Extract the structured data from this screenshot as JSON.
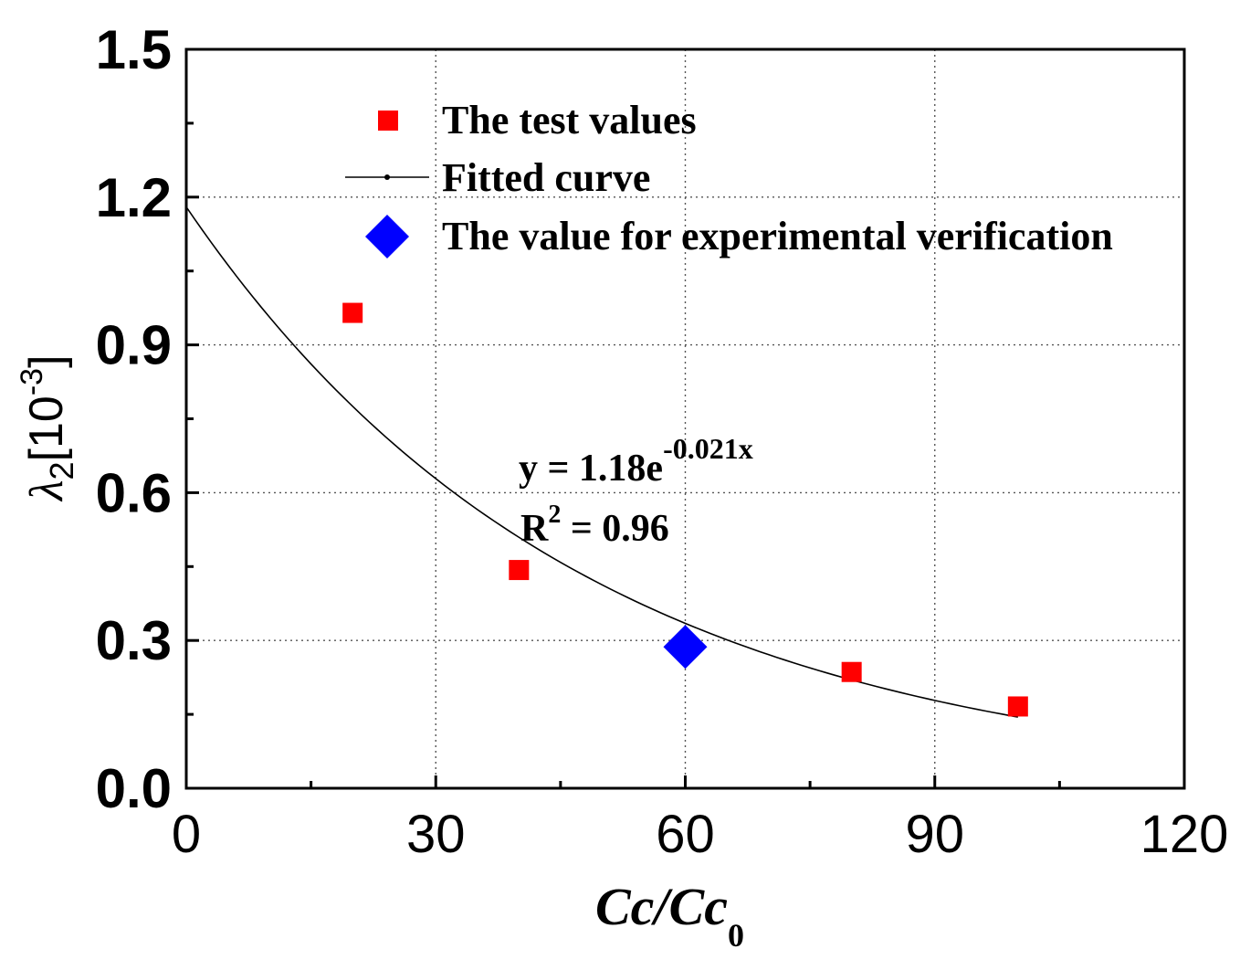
{
  "chart_data": {
    "type": "scatter",
    "xlim": [
      0,
      120
    ],
    "ylim": [
      0.0,
      1.5
    ],
    "x_ticks": [
      "0",
      "30",
      "60",
      "90",
      "120"
    ],
    "y_ticks": [
      "0.0",
      "0.3",
      "0.6",
      "0.9",
      "1.2",
      "1.5"
    ],
    "x_tick_values": [
      0,
      30,
      60,
      90,
      120
    ],
    "y_tick_values": [
      0.0,
      0.3,
      0.6,
      0.9,
      1.2,
      1.5
    ],
    "grid": true,
    "legend_position": "top",
    "xlabel": {
      "main": "Cc/Cc",
      "sub": "0"
    },
    "ylabel": {
      "symbol": "λ",
      "sub": "2",
      "open": "[10",
      "sup": "-3",
      "close": "]"
    },
    "series": [
      {
        "name": "The test values",
        "marker": "square",
        "color": "#ff0000",
        "x": [
          20,
          40,
          80,
          100
        ],
        "y": [
          0.965,
          0.443,
          0.236,
          0.166
        ]
      },
      {
        "name": "Fitted curve",
        "type": "line",
        "color": "#000000",
        "function": {
          "a": 1.18,
          "b": -0.021
        },
        "x_range": [
          0,
          100
        ]
      },
      {
        "name": "The value for experimental verification",
        "marker": "diamond",
        "color": "#0000ff",
        "x": [
          60
        ],
        "y": [
          0.287
        ]
      }
    ],
    "annotations": {
      "equation_main": "y = 1.18e",
      "equation_exp": "-0.021x",
      "r2_main": "R",
      "r2_sup": "2",
      "r2_value": " = 0.96"
    }
  }
}
